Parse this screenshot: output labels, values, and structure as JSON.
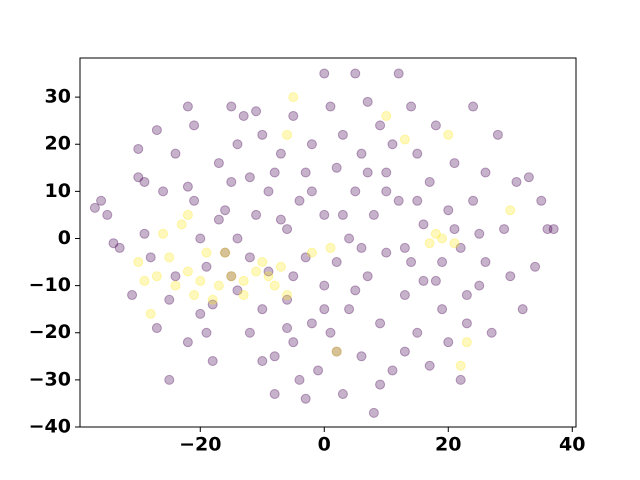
{
  "chart_data": {
    "type": "scatter",
    "xlim": [
      -39.4,
      40.6
    ],
    "ylim": [
      -40,
      38.3
    ],
    "xticks": [
      {
        "value": -20,
        "label": "−20"
      },
      0,
      20,
      40
    ],
    "yticks": [
      {
        "value": -40,
        "label": "−40"
      },
      {
        "value": -30,
        "label": "−30"
      },
      {
        "value": -20,
        "label": "−20"
      },
      {
        "value": -10,
        "label": "−10"
      },
      0,
      10,
      20,
      30
    ],
    "series": [
      {
        "color": "#440154",
        "x": [
          -37,
          -36,
          -35,
          -34,
          -33,
          -31,
          -30,
          -29,
          -30,
          -29,
          -28,
          -27,
          -27,
          -26,
          -25,
          -24,
          -24,
          -22,
          -22,
          -21,
          -21,
          -20,
          -19,
          -19,
          -18,
          -17,
          -17,
          -16,
          -15,
          -15,
          -14,
          -14,
          -13,
          -12,
          -12,
          -11,
          -11,
          -10,
          -10,
          -9,
          -9,
          -8,
          -8,
          -7,
          -6,
          -6,
          -5,
          -5,
          -4,
          -4,
          -3,
          -3,
          -2,
          -2,
          -1,
          0,
          0,
          0,
          1,
          1,
          2,
          2,
          3,
          3,
          4,
          4,
          5,
          5,
          6,
          6,
          7,
          7,
          8,
          8,
          9,
          9,
          10,
          10,
          11,
          12,
          12,
          13,
          13,
          14,
          14,
          15,
          15,
          16,
          17,
          17,
          18,
          18,
          19,
          20,
          20,
          21,
          22,
          22,
          23,
          24,
          24,
          25,
          26,
          26,
          27,
          28,
          29,
          30,
          31,
          32,
          33,
          34,
          35,
          36,
          37,
          -25,
          -22,
          -18,
          -16,
          -12,
          -10,
          -8,
          -6,
          -3,
          0,
          2,
          5,
          7,
          9,
          11,
          13,
          16,
          19,
          21,
          23,
          25,
          -20,
          -14,
          -7,
          3,
          6,
          10,
          15,
          -2,
          -5,
          -15
        ],
        "y": [
          6.5,
          8,
          5,
          -1,
          -2,
          -12,
          13,
          12,
          19,
          1,
          -4,
          23,
          -19,
          10,
          -13,
          -8,
          18,
          28,
          11,
          24,
          8,
          -16,
          -20,
          -6,
          -14,
          16,
          4,
          -3,
          28,
          12,
          -11,
          20,
          26,
          13,
          -20,
          27,
          5,
          -15,
          22,
          -7,
          10,
          -25,
          -33,
          18,
          -13,
          2,
          26,
          -22,
          8,
          -30,
          14,
          -4,
          20,
          -18,
          -28,
          35,
          5,
          -10,
          28,
          -20,
          15,
          -5,
          -33,
          22,
          0,
          -15,
          35,
          10,
          -25,
          18,
          29,
          -8,
          -37,
          5,
          -18,
          24,
          14,
          -3,
          -28,
          35,
          8,
          -12,
          -24,
          28,
          -5,
          18,
          -20,
          3,
          -27,
          12,
          -9,
          24,
          -15,
          6,
          -22,
          16,
          -2,
          -30,
          -18,
          28,
          8,
          -10,
          14,
          -5,
          -20,
          22,
          2,
          -8,
          12,
          -15,
          13,
          -6,
          8,
          2,
          2,
          -30,
          -22,
          -26,
          6,
          -4,
          -26,
          14,
          -19,
          -34,
          -15,
          -24,
          -11,
          14,
          -31,
          20,
          -2,
          -9,
          -5,
          2,
          -12,
          1,
          0,
          0,
          4,
          5,
          -2,
          10,
          8,
          10,
          -8,
          -8
        ]
      },
      {
        "color": "#fde725",
        "x": [
          -30,
          -29,
          -28,
          -27,
          -26,
          -25,
          -24,
          -23,
          -22,
          -22,
          -21,
          -20,
          -19,
          -18,
          -17,
          -15,
          -13,
          -11,
          -9,
          -8,
          -7,
          -6,
          -5,
          -6,
          -16,
          -13,
          -2,
          1,
          2,
          10,
          13,
          17,
          18,
          19,
          20,
          21,
          23,
          22,
          30,
          -10
        ],
        "y": [
          -5,
          -9,
          -16,
          -8,
          1,
          -4,
          -10,
          3,
          -7,
          5,
          -12,
          -9,
          -3,
          -13,
          -10,
          -8,
          -9,
          -7,
          -8,
          -10,
          -6,
          -12,
          30,
          22,
          -3,
          -12,
          -3,
          -2,
          -24,
          26,
          21,
          -1,
          1,
          0,
          22,
          -1,
          -22,
          -27,
          6,
          -5
        ]
      }
    ]
  }
}
